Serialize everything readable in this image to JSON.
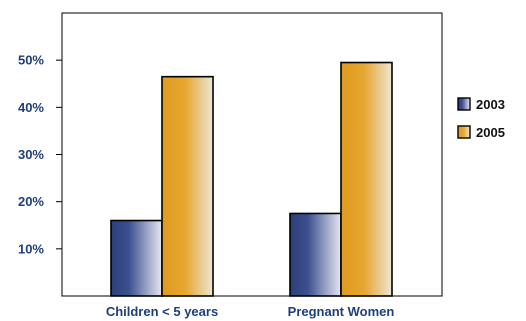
{
  "chart_data": {
    "type": "bar",
    "categories": [
      "Children < 5 years",
      "Pregnant Women"
    ],
    "series": [
      {
        "name": "2003",
        "values": [
          16,
          17.5
        ]
      },
      {
        "name": "2005",
        "values": [
          46.5,
          49.5
        ]
      }
    ],
    "ylim": [
      0,
      60
    ],
    "yticks": [
      10,
      20,
      30,
      40,
      50
    ],
    "ytick_labels": [
      "10%",
      "20%",
      "30%",
      "40%",
      "50%"
    ],
    "legend_position": "right",
    "grid": false,
    "colors": {
      "2003_dark": "#2b3f78",
      "2003_light": "#e6e8f0",
      "2005_dark": "#e09a1f",
      "2005_light": "#ece6d4",
      "text": "#1f3f7a"
    }
  }
}
